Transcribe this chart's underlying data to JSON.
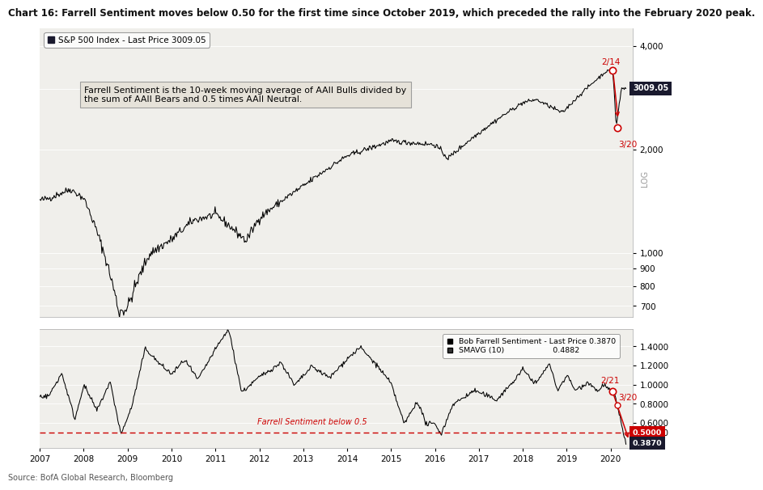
{
  "title": "Chart 16: Farrell Sentiment moves below 0.50 for the first time since October 2019, which preceded the rally into the February 2020 peak.",
  "title_fontsize": 8.5,
  "background_color": "#ffffff",
  "panel_bg": "#f0efeb",
  "sp500_label": "S&P 500 Index - Last Price 3009.05",
  "sp500_last": 3009.05,
  "farrell_label": "Bob Farrell Sentiment - Last Price 0.3870",
  "smavg_label": "SMAVG (10)                    0.4882",
  "annotation_text": "Farrell Sentiment is the 10-week moving average of AAII Bulls divided by\nthe sum of AAII Bears and 0.5 times AAII Neutral.",
  "source_text": "Source: BofA Global Research, Bloomberg",
  "sp500_ylim_log": [
    650,
    4500
  ],
  "sp500_yticks": [
    700,
    800,
    900,
    1000,
    2000,
    3000,
    4000
  ],
  "farrell_ylim": [
    0.34,
    1.58
  ],
  "farrell_yticks": [
    0.5,
    0.6,
    0.8,
    1.0,
    1.2,
    1.4
  ],
  "dashed_line_y": 0.5,
  "dashed_line_color": "#cc0000",
  "dashed_label": "Farrell Sentiment below 0.5",
  "x_start_year": 2007,
  "x_end_year": 2020.5
}
